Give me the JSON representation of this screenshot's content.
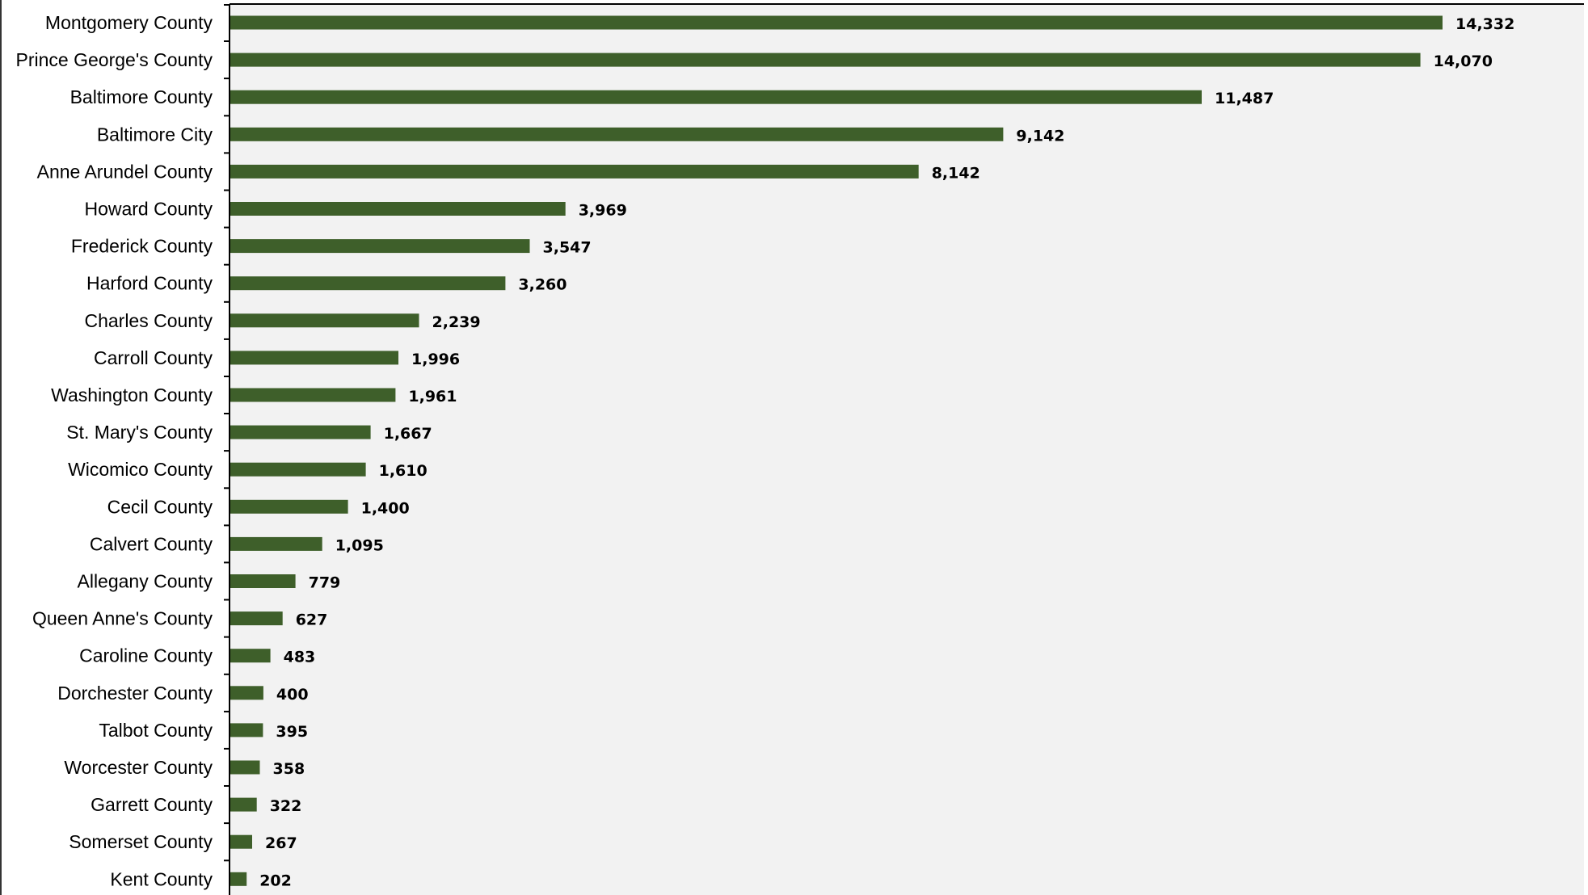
{
  "colors": {
    "bar": "#3e5f2a",
    "plot_background": "#f2f2f2",
    "page_background": "#ffffff",
    "axis": "#000000"
  },
  "chart_data": {
    "type": "bar",
    "orientation": "horizontal",
    "title": "",
    "xlabel": "",
    "ylabel": "",
    "categories": [
      "Montgomery County",
      "Prince George's County",
      "Baltimore County",
      "Baltimore City",
      "Anne Arundel County",
      "Howard County",
      "Frederick County",
      "Harford County",
      "Charles County",
      "Carroll County",
      "Washington County",
      "St. Mary's County",
      "Wicomico County",
      "Cecil County",
      "Calvert County",
      "Allegany County",
      "Queen Anne's County",
      "Caroline County",
      "Dorchester County",
      "Talbot County",
      "Worcester County",
      "Garrett County",
      "Somerset County",
      "Kent County"
    ],
    "values": [
      14332,
      14070,
      11487,
      9142,
      8142,
      3969,
      3547,
      3260,
      2239,
      1996,
      1961,
      1667,
      1610,
      1400,
      1095,
      779,
      627,
      483,
      400,
      395,
      358,
      322,
      267,
      202
    ],
    "value_labels": [
      "14,332",
      "14,070",
      "11,487",
      "9,142",
      "8,142",
      "3,969",
      "3,547",
      "3,260",
      "2,239",
      "1,996",
      "1,961",
      "1,667",
      "1,610",
      "1,400",
      "1,095",
      "779",
      "627",
      "483",
      "400",
      "395",
      "358",
      "322",
      "267",
      "202"
    ],
    "xlim": [
      0,
      16000
    ],
    "grid": false,
    "legend": "none",
    "data_labels": "outside-end"
  }
}
